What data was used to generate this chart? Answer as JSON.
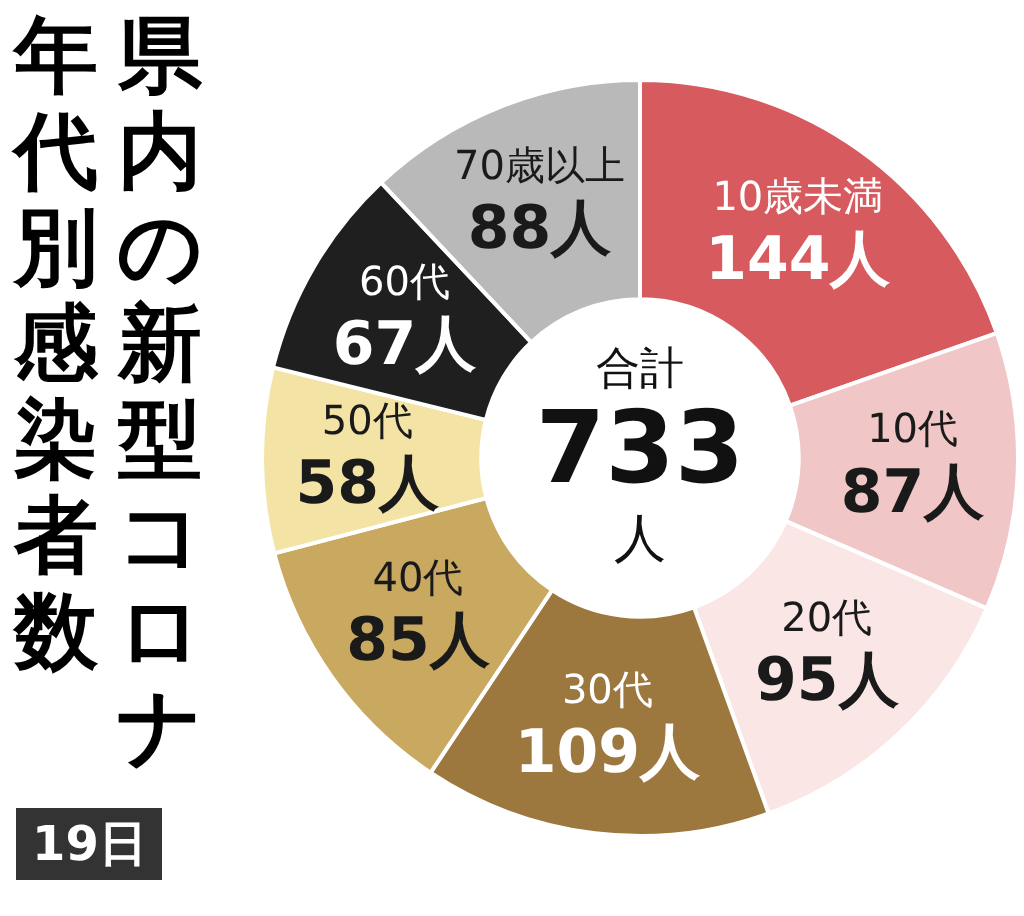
{
  "chart_data": {
    "type": "donut",
    "title": "県内の新型コロナ年代別感染者数",
    "categories": [
      "10歳未満",
      "10代",
      "20代",
      "30代",
      "40代",
      "50代",
      "60代",
      "70歳以上"
    ],
    "values": [
      144,
      87,
      95,
      109,
      85,
      58,
      67,
      88
    ],
    "value_labels": [
      "144人",
      "87人",
      "95人",
      "109人",
      "85人",
      "58人",
      "67人",
      "88人"
    ],
    "colors": [
      "#d65a5e",
      "#f1c6c6",
      "#fbe6e6",
      "#9c783f",
      "#c9a85f",
      "#f3e4a6",
      "#1f1f1f",
      "#b9b9b9"
    ],
    "annotations": [
      "合計",
      "733",
      "人",
      "19日"
    ],
    "legend": false
  }
}
